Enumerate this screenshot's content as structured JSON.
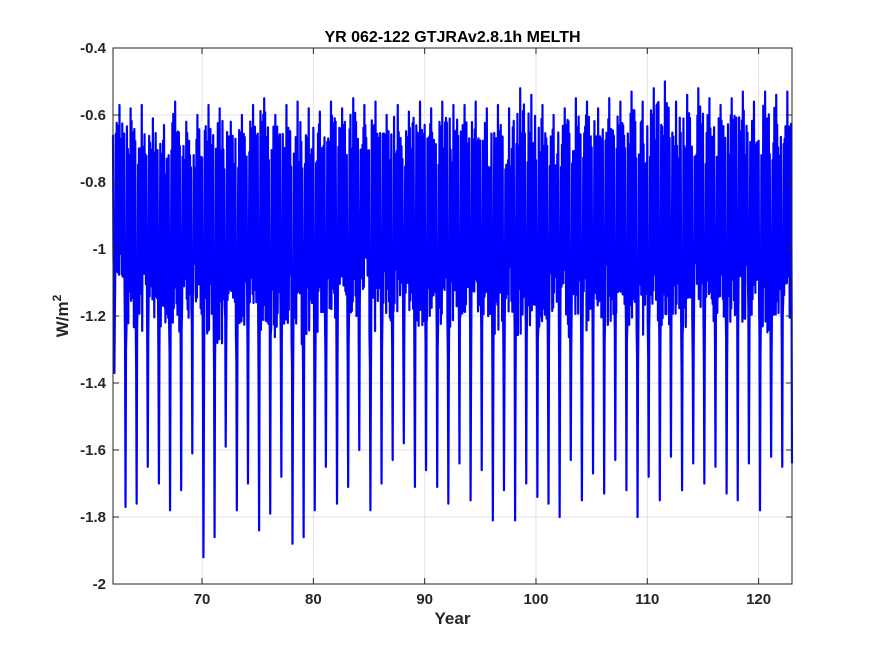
{
  "chart_data": {
    "type": "line",
    "title": "YR 062-122 GTJRAv2.8.1h MELTH",
    "xlabel": "Year",
    "ylabel_base": "W/m",
    "ylabel_exponent": "2",
    "xlim": [
      62,
      123
    ],
    "ylim": [
      -2,
      -0.4
    ],
    "xticks": [
      70,
      80,
      90,
      100,
      110,
      120
    ],
    "yticks": [
      -2,
      -1.8,
      -1.6,
      -1.4,
      -1.2,
      -1,
      -0.8,
      -0.6,
      -0.4
    ],
    "ytick_labels": [
      "-2",
      "-1.8",
      "-1.6",
      "-1.4",
      "-1.2",
      "-1",
      "-0.8",
      "-0.6",
      "-0.4"
    ],
    "grid": true,
    "series_color": "#0000ff",
    "series": [
      {
        "description_of_signal": "monthly-resolution seasonal cycle",
        "annual_peaks": [
          -0.57,
          -0.58,
          -0.57,
          -0.61,
          -0.63,
          -0.56,
          -0.62,
          -0.6,
          -0.57,
          -0.58,
          -0.62,
          -0.6,
          -0.57,
          -0.55,
          -0.6,
          -0.57,
          -0.56,
          -0.58,
          -0.59,
          -0.56,
          -0.58,
          -0.55,
          -0.57,
          -0.56,
          -0.6,
          -0.57,
          -0.59,
          -0.56,
          -0.58,
          -0.56,
          -0.57,
          -0.57,
          -0.56,
          -0.58,
          -0.57,
          -0.58,
          -0.52,
          -0.54,
          -0.57,
          -0.6,
          -0.58,
          -0.55,
          -0.56,
          -0.58,
          -0.55,
          -0.56,
          -0.53,
          -0.56,
          -0.52,
          -0.5,
          -0.56,
          -0.54,
          -0.52,
          -0.55,
          -0.57,
          -0.55,
          -0.53,
          -0.56,
          -0.53,
          -0.54,
          -0.53
        ],
        "annual_minima": [
          -1.37,
          -1.77,
          -1.76,
          -1.65,
          -1.7,
          -1.78,
          -1.72,
          -1.61,
          -1.92,
          -1.86,
          -1.59,
          -1.78,
          -1.7,
          -1.84,
          -1.79,
          -1.68,
          -1.88,
          -1.86,
          -1.78,
          -1.65,
          -1.76,
          -1.71,
          -1.6,
          -1.78,
          -1.7,
          -1.63,
          -1.58,
          -1.71,
          -1.66,
          -1.71,
          -1.76,
          -1.64,
          -1.75,
          -1.66,
          -1.81,
          -1.72,
          -1.81,
          -1.7,
          -1.74,
          -1.76,
          -1.8,
          -1.63,
          -1.75,
          -1.67,
          -1.73,
          -1.63,
          -1.72,
          -1.8,
          -1.68,
          -1.75,
          -1.62,
          -1.72,
          -1.64,
          -1.7,
          -1.65,
          -1.73,
          -1.75,
          -1.64,
          -1.78,
          -1.62,
          -1.65
        ],
        "baseline": -0.92
      }
    ]
  }
}
